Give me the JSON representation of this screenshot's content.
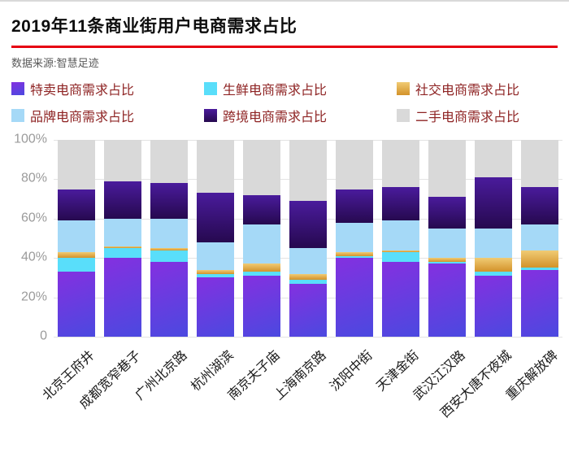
{
  "header": {
    "title": "2019年11条商业街用户电商需求占比",
    "source": "数据来源:智慧足迹"
  },
  "colors": {
    "accent_red": "#e60012",
    "legend_text": "#8e2323",
    "axis_text": "#9b9b9b",
    "x_label_text": "#1a1a1a",
    "grid_line": "#e3e3e3",
    "background": "#ffffff"
  },
  "chart_data": {
    "type": "bar",
    "stacked": true,
    "title": "2019年11条商业街用户电商需求占比",
    "legend_position": "top",
    "grid": true,
    "ylabel": "",
    "xlabel": "",
    "ylim": [
      0,
      100
    ],
    "yticks": [
      "100%",
      "80%",
      "60%",
      "40%",
      "20%",
      "0"
    ],
    "categories": [
      "北京王府井",
      "成都宽窄巷子",
      "广州北京路",
      "杭州湖滨",
      "南京夫子庙",
      "上海南京路",
      "沈阳中街",
      "天津金街",
      "武汉江汉路",
      "西安大唐不夜城",
      "重庆解放碑"
    ],
    "series": [
      {
        "name": "特卖电商需求占比",
        "fill": "linear-gradient(160deg, #8430e0 0%, #4b49e0 100%)",
        "values": [
          33,
          40,
          38,
          30,
          31,
          27,
          40,
          38,
          37,
          31,
          34
        ]
      },
      {
        "name": "生鲜电商需求占比",
        "fill": "#59defa",
        "values": [
          7,
          5,
          6,
          2,
          2,
          2,
          1,
          5,
          1,
          2,
          1
        ]
      },
      {
        "name": "社交电商需求占比",
        "fill": "linear-gradient(180deg, #f0cb74 0%, #d3922a 100%)",
        "values": [
          3,
          1,
          1,
          2,
          4,
          3,
          2,
          1,
          2,
          7,
          9
        ]
      },
      {
        "name": "品牌电商需求占比",
        "fill": "#a5d9f7",
        "values": [
          16,
          14,
          15,
          14,
          20,
          13,
          15,
          15,
          15,
          15,
          13
        ]
      },
      {
        "name": "跨境电商需求占比",
        "fill": "linear-gradient(180deg, #4a1b9c 0%, #26094f 100%)",
        "values": [
          16,
          19,
          18,
          25,
          15,
          24,
          17,
          17,
          16,
          26,
          19
        ]
      },
      {
        "name": "二手电商需求占比",
        "fill": "#d9d9d9",
        "values": [
          25,
          21,
          22,
          27,
          28,
          31,
          25,
          24,
          29,
          19,
          24
        ]
      }
    ]
  }
}
